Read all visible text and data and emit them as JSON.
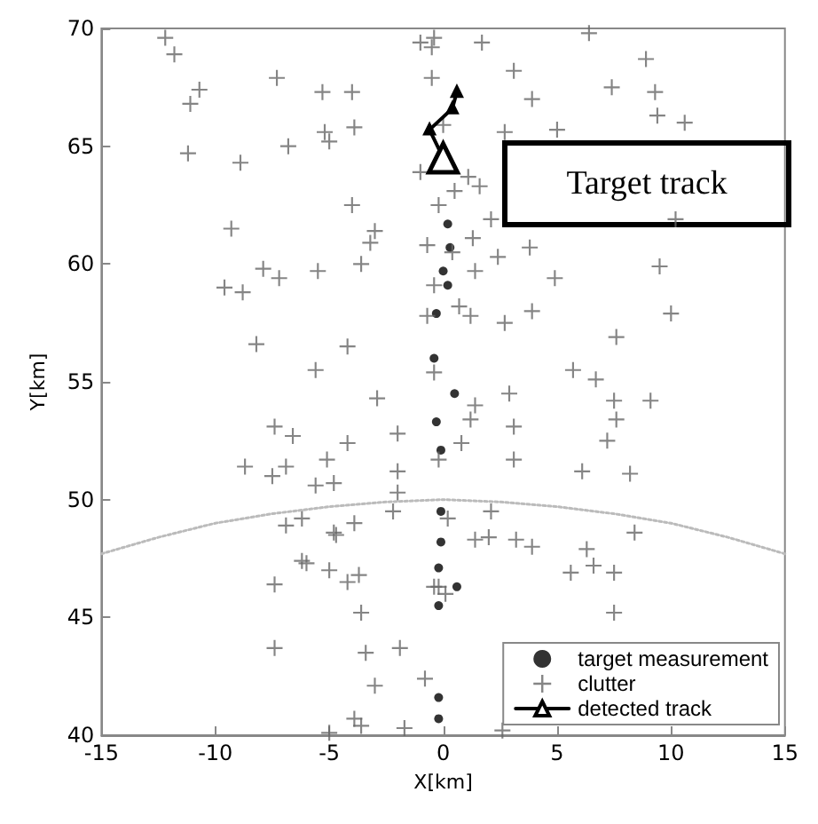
{
  "chart_data": {
    "type": "scatter",
    "xlabel": "X[km]",
    "ylabel": "Y[km]",
    "xlim": [
      -15,
      15
    ],
    "xticks": [
      -15,
      -10,
      -5,
      0,
      5,
      10,
      15
    ],
    "ylim": [
      40,
      70
    ],
    "yticks": [
      40,
      45,
      50,
      55,
      60,
      65,
      70
    ],
    "grid": false,
    "legend": "bottom right",
    "annotations": [
      "Target track"
    ],
    "series": [
      {
        "name": "target measurement",
        "marker": "circle",
        "color": "#000000",
        "x": [
          0.2,
          0.3,
          0.0,
          0.2,
          -0.3,
          -0.4,
          0.5,
          -0.3,
          -0.1,
          -0.1,
          -0.1,
          -0.2,
          0.6,
          -0.2,
          -0.2,
          -0.2
        ],
        "values": [
          61.7,
          60.7,
          59.7,
          59.1,
          57.9,
          56.0,
          54.5,
          53.3,
          52.1,
          49.5,
          48.2,
          47.1,
          46.3,
          45.5,
          41.6,
          40.7
        ]
      },
      {
        "name": "clutter",
        "marker": "cross",
        "color": "#666666",
        "x": [
          -12.2,
          -11.8,
          -11.1,
          -10.7,
          -11.2,
          -8.9,
          -7.3,
          -6.8,
          -5.3,
          -5.2,
          -5.0,
          -4.0,
          -3.9,
          -9.3,
          -4.0,
          -3.0,
          -3.2,
          -3.6,
          -7.9,
          -7.2,
          -9.6,
          -8.8,
          -5.5,
          -8.2,
          -4.2,
          -5.6,
          -1.0,
          -0.5,
          -0.4,
          -0.5,
          -1.0,
          -0.2,
          -0.7,
          -0.4,
          -0.7,
          -0.4,
          1.7,
          6.4,
          3.1,
          8.9,
          7.4,
          9.3,
          3.9,
          9.4,
          10.6,
          0.0,
          2.7,
          5.0,
          1.1,
          0.5,
          1.6,
          2.1,
          10.2,
          0.4,
          1.3,
          2.4,
          3.8,
          9.5,
          1.4,
          4.9,
          0.7,
          1.2,
          2.7,
          3.9,
          10.0,
          7.6,
          5.7,
          6.7,
          -2.9,
          -7.4,
          -6.6,
          -2.0,
          -4.2,
          -5.1,
          -8.7,
          -6.9,
          -7.5,
          -2.0,
          -5.6,
          -4.8,
          -2.0,
          -2.2,
          -6.9,
          -6.2,
          -3.9,
          -4.8,
          -4.7,
          -6.2,
          -6.0,
          -5.0,
          -3.7,
          -4.2,
          -7.4,
          -3.6,
          -7.4,
          -3.4,
          -1.9,
          -0.8,
          -3.0,
          -3.9,
          -3.6,
          -5.0,
          -1.7,
          -0.2,
          -0.2,
          2.9,
          1.4,
          7.5,
          9.1,
          1.2,
          7.6,
          3.1,
          0.8,
          7.2,
          3.1,
          6.1,
          8.2,
          0.2,
          2.1,
          1.4,
          2.0,
          3.2,
          3.9,
          8.4,
          6.3,
          5.6,
          6.6,
          7.5,
          -0.4,
          0.1,
          7.5,
          2.6
        ],
        "values": [
          69.6,
          68.9,
          66.8,
          67.4,
          64.7,
          64.3,
          67.9,
          65.0,
          67.3,
          65.6,
          65.2,
          67.3,
          65.8,
          61.5,
          62.5,
          61.4,
          60.9,
          60.0,
          59.8,
          59.4,
          59.0,
          58.8,
          59.7,
          56.6,
          56.5,
          55.5,
          69.4,
          69.2,
          69.6,
          67.9,
          63.9,
          62.5,
          60.8,
          59.1,
          57.8,
          55.4,
          69.4,
          69.8,
          68.2,
          68.7,
          67.5,
          67.3,
          67.0,
          66.3,
          66.0,
          65.9,
          65.6,
          65.7,
          63.7,
          63.1,
          63.3,
          61.9,
          61.9,
          60.5,
          61.1,
          60.3,
          60.7,
          59.9,
          59.7,
          59.4,
          58.2,
          57.8,
          57.5,
          58.0,
          57.9,
          56.9,
          55.5,
          55.1,
          54.3,
          53.1,
          52.7,
          52.8,
          52.4,
          51.7,
          51.4,
          51.4,
          51.0,
          51.2,
          50.6,
          50.7,
          50.3,
          49.5,
          48.9,
          49.2,
          49.0,
          48.6,
          48.5,
          47.4,
          47.3,
          47.0,
          46.8,
          46.5,
          46.4,
          45.2,
          43.7,
          43.5,
          43.7,
          42.4,
          42.1,
          40.7,
          40.4,
          40.1,
          40.3,
          46.3,
          51.7,
          54.5,
          54.0,
          54.2,
          54.2,
          53.4,
          53.4,
          53.1,
          52.4,
          52.5,
          51.7,
          51.2,
          51.1,
          49.2,
          49.5,
          48.3,
          48.4,
          48.3,
          48.0,
          48.6,
          47.9,
          46.9,
          47.2,
          46.9,
          46.3,
          46.0,
          45.2,
          40.2
        ]
      },
      {
        "name": "detected track",
        "type": "line",
        "marker": "triangle",
        "line_style": "solid",
        "color": "#000000",
        "x": [
          0.0,
          -0.6,
          0.4,
          0.6
        ],
        "values": [
          64.5,
          65.7,
          66.6,
          67.3
        ]
      },
      {
        "type": "line",
        "marker": "none",
        "line_style": "dotted",
        "color": "#bbbbbb",
        "x": [
          -15,
          -12.5,
          -10,
          -7.5,
          -5,
          -2.5,
          0,
          2.5,
          5,
          7.5,
          10,
          12.5,
          15
        ],
        "values": [
          47.7,
          48.4,
          49.0,
          49.4,
          49.7,
          49.9,
          50.0,
          49.9,
          49.7,
          49.4,
          49.0,
          48.4,
          47.7
        ]
      }
    ]
  }
}
